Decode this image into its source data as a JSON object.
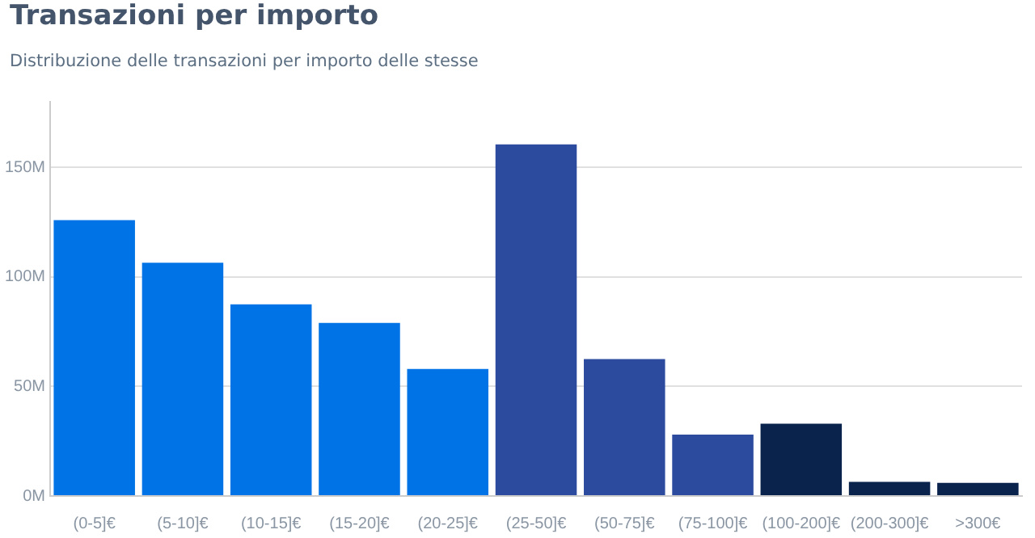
{
  "chart_data": {
    "type": "bar",
    "title": "Transazioni per importo",
    "subtitle": "Distribuzione delle transazioni per importo delle stesse",
    "categories": [
      "(0-5]€",
      "(5-10]€",
      "(10-15]€",
      "(15-20]€",
      "(20-25]€",
      "(25-50]€",
      "(50-75]€",
      "(75-100]€",
      "(100-200]€",
      "(200-300]€",
      ">300€"
    ],
    "values": [
      126,
      106.5,
      87.5,
      79,
      58,
      160.5,
      62.5,
      28,
      33,
      6.5,
      6
    ],
    "colors": [
      "#0073e6",
      "#0073e6",
      "#0073e6",
      "#0073e6",
      "#0073e6",
      "#2c4a9e",
      "#2c4a9e",
      "#2c4a9e",
      "#0a234d",
      "#0a234d",
      "#0a234d"
    ],
    "ylim": [
      0,
      180
    ],
    "yticks": [
      {
        "value": 0,
        "label": "0M"
      },
      {
        "value": 50,
        "label": "50M"
      },
      {
        "value": 100,
        "label": "100M"
      },
      {
        "value": 150,
        "label": "150M"
      }
    ],
    "grid": "y"
  }
}
